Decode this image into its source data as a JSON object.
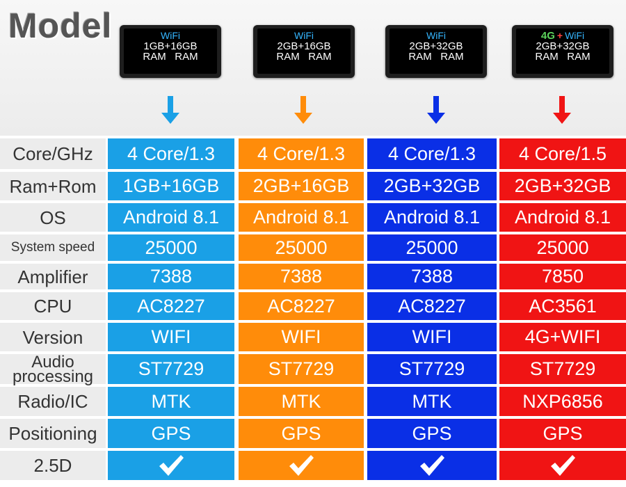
{
  "title": "Model",
  "colors": {
    "col1": "#1aa0e6",
    "col2": "#ff8c0a",
    "col3": "#0a2fe6",
    "col4": "#f01414",
    "label_bg": "#ececec"
  },
  "models": [
    {
      "top": "WiFi",
      "spec1": "1GB+16GB",
      "spec2": "RAM   RAM"
    },
    {
      "top": "WiFi",
      "spec1": "2GB+16GB",
      "spec2": "RAM   RAM"
    },
    {
      "top": "WiFi",
      "spec1": "2GB+32GB",
      "spec2": "RAM   RAM"
    },
    {
      "top_prefix": "4G",
      "top_plus": "+",
      "top": "WiFi",
      "spec1": "2GB+32GB",
      "spec2": "RAM   RAM"
    }
  ],
  "rows": [
    {
      "label": "Core/GHz",
      "values": [
        "4 Core/1.3",
        "4 Core/1.3",
        "4 Core/1.3",
        "4 Core/1.5"
      ]
    },
    {
      "label": "Ram+Rom",
      "values": [
        "1GB+16GB",
        "2GB+16GB",
        "2GB+32GB",
        "2GB+32GB"
      ]
    },
    {
      "label": "OS",
      "values": [
        "Android 8.1",
        "Android 8.1",
        "Android 8.1",
        "Android 8.1"
      ]
    },
    {
      "label": "System speed",
      "values": [
        "25000",
        "25000",
        "25000",
        "25000"
      ]
    },
    {
      "label": "Amplifier",
      "values": [
        "7388",
        "7388",
        "7388",
        "7850"
      ]
    },
    {
      "label": "CPU",
      "values": [
        "AC8227",
        "AC8227",
        "AC8227",
        "AC3561"
      ]
    },
    {
      "label": "Version",
      "values": [
        "WIFI",
        "WIFI",
        "WIFI",
        "4G+WIFI"
      ]
    },
    {
      "label": "Audio processing",
      "values": [
        "ST7729",
        "ST7729",
        "ST7729",
        "ST7729"
      ]
    },
    {
      "label": "Radio/IC",
      "values": [
        "MTK",
        "MTK",
        "MTK",
        "NXP6856"
      ]
    },
    {
      "label": "Positioning",
      "values": [
        "GPS",
        "GPS",
        "GPS",
        "GPS"
      ]
    },
    {
      "label": "2.5D",
      "values": [
        "check-icon",
        "check-icon",
        "check-icon",
        "check-icon"
      ]
    }
  ]
}
